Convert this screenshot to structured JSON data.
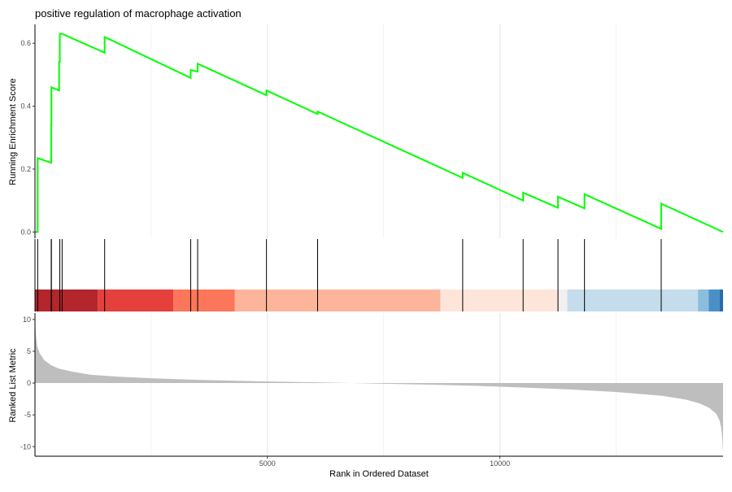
{
  "chart_data": {
    "type": "line",
    "title": "positive regulation of macrophage activation",
    "xlabel": "Rank in Ordered Dataset",
    "x_range": [
      1,
      14800
    ],
    "x_ticks": [
      5000,
      10000
    ],
    "x_tick_labels": [
      "5000",
      "10000"
    ],
    "panels": {
      "enrichment": {
        "ylabel": "Running Enrichment Score",
        "y_range": [
          -0.02,
          0.66
        ],
        "y_ticks": [
          0.0,
          0.2,
          0.4,
          0.6
        ],
        "y_tick_labels": [
          "0.0",
          "0.2",
          "0.4",
          "0.6"
        ],
        "line_color": "#00ff00",
        "series": [
          {
            "x": [
              1,
              60,
              60,
              350,
              350,
              355,
              355,
              520,
              520,
              535,
              535,
              585,
              585,
              1500,
              1500,
              3350,
              3350,
              3500,
              3500,
              4980,
              4980,
              6080,
              6080,
              9200,
              9200,
              10500,
              10500,
              11250,
              11250,
              11820,
              11820,
              13470,
              13470,
              14800
            ],
            "y": [
              0.0,
              0.0,
              0.235,
              0.22,
              0.34,
              0.34,
              0.46,
              0.45,
              0.54,
              0.54,
              0.63,
              0.63,
              0.63,
              0.57,
              0.62,
              0.49,
              0.515,
              0.51,
              0.535,
              0.435,
              0.45,
              0.375,
              0.383,
              0.172,
              0.188,
              0.1,
              0.125,
              0.077,
              0.112,
              0.075,
              0.12,
              0.01,
              0.09,
              0.0
            ]
          }
        ]
      },
      "hits": {
        "positions": [
          60,
          350,
          355,
          535,
          585,
          1500,
          3350,
          3500,
          4980,
          6080,
          9200,
          10500,
          11250,
          11820,
          13470
        ],
        "color_bands": [
          {
            "start": 1,
            "end": 1350,
            "color": "#b2262c"
          },
          {
            "start": 1350,
            "end": 2980,
            "color": "#e5403c"
          },
          {
            "start": 2980,
            "end": 4300,
            "color": "#fb765a"
          },
          {
            "start": 4300,
            "end": 8720,
            "color": "#fcb49b"
          },
          {
            "start": 8720,
            "end": 11270,
            "color": "#fde5da"
          },
          {
            "start": 11270,
            "end": 11450,
            "color": "#f0f0f0"
          },
          {
            "start": 11450,
            "end": 14260,
            "color": "#c4dceb"
          },
          {
            "start": 14260,
            "end": 14490,
            "color": "#8bbede"
          },
          {
            "start": 14490,
            "end": 14730,
            "color": "#4a90c7"
          },
          {
            "start": 14730,
            "end": 14800,
            "color": "#2a6bb0"
          }
        ]
      },
      "ranked": {
        "ylabel": "Ranked List Metric",
        "y_range": [
          -11.5,
          11
        ],
        "y_ticks": [
          -10,
          -5,
          0,
          5,
          10
        ],
        "y_tick_labels": [
          "-10",
          "-5",
          "0",
          "5",
          "10"
        ],
        "fill_color": "#bebebe",
        "series": [
          {
            "x": [
              1,
              20,
              50,
              100,
              200,
              350,
              500,
              800,
              1200,
              1800,
              2500,
              3500,
              5000,
              6500,
              7500,
              8500,
              9500,
              10500,
              11500,
              12500,
              13500,
              14000,
              14300,
              14500,
              14650,
              14720,
              14760,
              14785,
              14800
            ],
            "y": [
              10.5,
              7.5,
              5.8,
              4.7,
              3.6,
              2.8,
              2.3,
              1.8,
              1.3,
              1.0,
              0.75,
              0.5,
              0.25,
              0.05,
              -0.1,
              -0.25,
              -0.45,
              -0.7,
              -1.0,
              -1.4,
              -2.0,
              -2.6,
              -3.2,
              -3.9,
              -4.8,
              -5.8,
              -7.0,
              -8.8,
              -10.8
            ]
          }
        ]
      }
    }
  }
}
